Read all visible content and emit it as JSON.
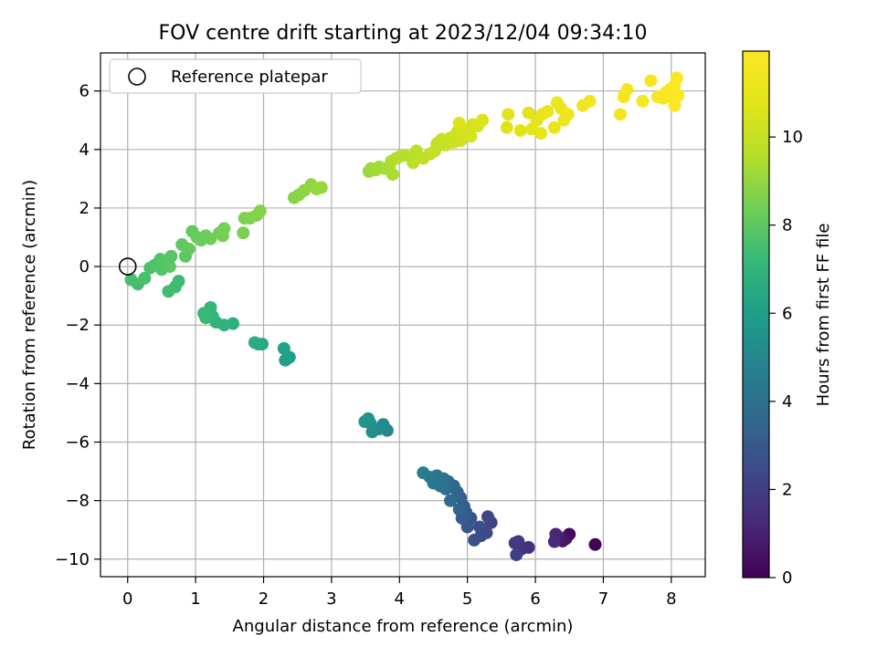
{
  "chart_data": {
    "type": "scatter",
    "title": "FOV centre drift starting at 2023/12/04 09:34:10",
    "xlabel": "Angular distance from reference (arcmin)",
    "ylabel": "Rotation from reference (arcmin)",
    "xlim": [
      -0.4,
      8.5
    ],
    "ylim": [
      -10.6,
      7.3
    ],
    "xticks": [
      0,
      1,
      2,
      3,
      4,
      5,
      6,
      7,
      8
    ],
    "yticks": [
      -10,
      -8,
      -6,
      -4,
      -2,
      0,
      2,
      4,
      6
    ],
    "grid": true,
    "legend": {
      "position": "top-left",
      "entries": [
        "Reference platepar"
      ]
    },
    "reference_point": {
      "x": 0,
      "y": 0,
      "label": "Reference platepar"
    },
    "colorbar": {
      "label": "Hours from first FF file",
      "colormap": "viridis",
      "range": [
        0,
        11.95
      ],
      "ticks": [
        0,
        2,
        4,
        6,
        8,
        10
      ]
    },
    "series": [
      {
        "points": [
          [
            6.88,
            -9.5,
            0.05
          ],
          [
            6.5,
            -9.15,
            0.3
          ],
          [
            6.45,
            -9.3,
            0.5
          ],
          [
            6.4,
            -9.38,
            0.7
          ],
          [
            6.35,
            -9.25,
            0.9
          ],
          [
            6.3,
            -9.15,
            1.1
          ],
          [
            6.28,
            -9.4,
            1.25
          ],
          [
            5.9,
            -9.6,
            1.45
          ],
          [
            5.8,
            -9.65,
            1.6
          ],
          [
            5.75,
            -9.4,
            1.75
          ],
          [
            5.7,
            -9.45,
            1.9
          ],
          [
            5.72,
            -9.85,
            2.0
          ],
          [
            5.35,
            -8.75,
            2.2
          ],
          [
            5.3,
            -8.55,
            2.3
          ],
          [
            5.28,
            -9.1,
            2.4
          ],
          [
            5.2,
            -9.2,
            2.5
          ],
          [
            5.18,
            -8.9,
            2.6
          ],
          [
            5.1,
            -9.35,
            2.7
          ],
          [
            5.05,
            -8.6,
            2.8
          ],
          [
            5.0,
            -8.9,
            2.9
          ],
          [
            4.98,
            -8.4,
            3.0
          ],
          [
            4.95,
            -8.2,
            3.1
          ],
          [
            4.92,
            -8.6,
            3.2
          ],
          [
            4.9,
            -7.9,
            3.3
          ],
          [
            4.88,
            -8.3,
            3.4
          ],
          [
            4.85,
            -7.7,
            3.5
          ],
          [
            4.8,
            -7.5,
            3.6
          ],
          [
            4.75,
            -8.0,
            3.7
          ],
          [
            4.72,
            -7.35,
            3.8
          ],
          [
            4.68,
            -7.6,
            3.9
          ],
          [
            4.65,
            -7.25,
            4.0
          ],
          [
            4.6,
            -7.5,
            4.1
          ],
          [
            4.55,
            -7.15,
            4.2
          ],
          [
            4.5,
            -7.4,
            4.3
          ],
          [
            4.45,
            -7.2,
            4.4
          ],
          [
            4.35,
            -7.05,
            4.5
          ],
          [
            3.82,
            -5.6,
            5.0
          ],
          [
            3.76,
            -5.4,
            5.1
          ],
          [
            3.7,
            -5.55,
            5.2
          ],
          [
            3.6,
            -5.65,
            5.3
          ],
          [
            3.57,
            -5.35,
            5.4
          ],
          [
            3.54,
            -5.2,
            5.5
          ],
          [
            3.49,
            -5.3,
            5.6
          ],
          [
            2.38,
            -3.1,
            6.0
          ],
          [
            2.32,
            -3.2,
            6.1
          ],
          [
            2.3,
            -2.8,
            6.2
          ],
          [
            1.98,
            -2.65,
            6.4
          ],
          [
            1.92,
            -2.65,
            6.5
          ],
          [
            1.87,
            -2.6,
            6.6
          ],
          [
            1.55,
            -1.95,
            6.8
          ],
          [
            1.42,
            -2.0,
            6.9
          ],
          [
            1.3,
            -1.9,
            7.0
          ],
          [
            1.25,
            -1.7,
            7.05
          ],
          [
            1.22,
            -1.4,
            7.1
          ],
          [
            1.2,
            -1.55,
            7.15
          ],
          [
            1.15,
            -1.75,
            7.2
          ],
          [
            1.12,
            -1.6,
            7.25
          ],
          [
            0.75,
            -0.5,
            7.35
          ],
          [
            0.7,
            -0.7,
            7.4
          ],
          [
            0.6,
            -0.85,
            7.45
          ],
          [
            0.15,
            -0.6,
            7.5
          ],
          [
            0.05,
            -0.45,
            7.55
          ],
          [
            0.25,
            -0.4,
            7.6
          ],
          [
            0.33,
            -0.05,
            7.65
          ],
          [
            0.4,
            0.05,
            7.7
          ],
          [
            0.5,
            -0.1,
            7.75
          ],
          [
            0.48,
            0.25,
            7.8
          ],
          [
            0.58,
            0.2,
            7.85
          ],
          [
            0.64,
            0.35,
            7.9
          ],
          [
            0.62,
            0.0,
            7.95
          ],
          [
            0.85,
            0.35,
            8.0
          ],
          [
            0.8,
            0.75,
            8.05
          ],
          [
            0.9,
            0.6,
            8.1
          ],
          [
            0.95,
            1.2,
            8.15
          ],
          [
            1.02,
            1.0,
            8.2
          ],
          [
            1.08,
            0.9,
            8.25
          ],
          [
            1.15,
            1.05,
            8.3
          ],
          [
            1.22,
            0.95,
            8.35
          ],
          [
            1.35,
            1.15,
            8.4
          ],
          [
            1.4,
            1.05,
            8.45
          ],
          [
            1.42,
            1.3,
            8.5
          ],
          [
            1.7,
            1.15,
            8.55
          ],
          [
            1.72,
            1.65,
            8.6
          ],
          [
            1.8,
            1.65,
            8.65
          ],
          [
            1.9,
            1.75,
            8.7
          ],
          [
            1.95,
            1.9,
            8.75
          ],
          [
            2.45,
            2.35,
            8.8
          ],
          [
            2.52,
            2.45,
            8.85
          ],
          [
            2.6,
            2.6,
            8.9
          ],
          [
            2.7,
            2.8,
            8.95
          ],
          [
            2.78,
            2.65,
            9.0
          ],
          [
            2.85,
            2.7,
            9.05
          ],
          [
            3.55,
            3.25,
            9.1
          ],
          [
            3.58,
            3.35,
            9.15
          ],
          [
            3.65,
            3.3,
            9.2
          ],
          [
            3.7,
            3.4,
            9.25
          ],
          [
            3.78,
            3.35,
            9.3
          ],
          [
            3.85,
            3.4,
            9.35
          ],
          [
            3.9,
            3.15,
            9.4
          ],
          [
            3.88,
            3.6,
            9.45
          ],
          [
            3.95,
            3.7,
            9.5
          ],
          [
            4.0,
            3.75,
            9.55
          ],
          [
            4.08,
            3.8,
            9.6
          ],
          [
            4.2,
            3.7,
            9.65
          ],
          [
            4.2,
            3.55,
            9.7
          ],
          [
            4.25,
            3.95,
            9.75
          ],
          [
            4.35,
            3.7,
            9.8
          ],
          [
            4.45,
            3.85,
            9.85
          ],
          [
            4.52,
            3.95,
            9.9
          ],
          [
            4.55,
            4.2,
            9.95
          ],
          [
            4.62,
            4.35,
            10.0
          ],
          [
            4.68,
            4.15,
            10.05
          ],
          [
            4.75,
            4.4,
            10.1
          ],
          [
            4.8,
            4.25,
            10.15
          ],
          [
            4.85,
            4.6,
            10.2
          ],
          [
            4.9,
            4.3,
            10.25
          ],
          [
            4.95,
            4.5,
            10.3
          ],
          [
            5.0,
            4.7,
            10.35
          ],
          [
            5.05,
            4.45,
            10.4
          ],
          [
            5.08,
            4.85,
            10.45
          ],
          [
            5.15,
            4.8,
            10.5
          ],
          [
            5.22,
            5.0,
            10.55
          ],
          [
            4.88,
            4.9,
            10.6
          ],
          [
            5.58,
            4.75,
            10.65
          ],
          [
            5.6,
            5.2,
            10.7
          ],
          [
            5.78,
            4.65,
            10.75
          ],
          [
            5.9,
            5.25,
            10.8
          ],
          [
            5.95,
            4.7,
            10.85
          ],
          [
            6.02,
            5.0,
            10.9
          ],
          [
            6.08,
            4.55,
            10.95
          ],
          [
            6.1,
            5.2,
            11.0
          ],
          [
            6.18,
            5.3,
            11.05
          ],
          [
            6.28,
            4.75,
            11.1
          ],
          [
            6.32,
            5.6,
            11.15
          ],
          [
            6.38,
            5.4,
            11.2
          ],
          [
            6.42,
            5.0,
            11.25
          ],
          [
            6.48,
            5.2,
            11.3
          ],
          [
            6.7,
            5.5,
            11.35
          ],
          [
            6.8,
            5.65,
            11.4
          ],
          [
            7.25,
            5.2,
            11.45
          ],
          [
            7.3,
            5.8,
            11.5
          ],
          [
            7.35,
            6.05,
            11.55
          ],
          [
            7.58,
            5.65,
            11.6
          ],
          [
            7.7,
            6.35,
            11.65
          ],
          [
            7.8,
            5.8,
            11.7
          ],
          [
            7.88,
            5.75,
            11.75
          ],
          [
            7.92,
            5.95,
            11.8
          ],
          [
            7.98,
            6.05,
            11.83
          ],
          [
            8.02,
            5.75,
            11.86
          ],
          [
            8.05,
            6.2,
            11.88
          ],
          [
            8.08,
            6.45,
            11.9
          ],
          [
            8.1,
            5.85,
            11.92
          ],
          [
            8.05,
            5.5,
            11.95
          ]
        ]
      }
    ]
  }
}
